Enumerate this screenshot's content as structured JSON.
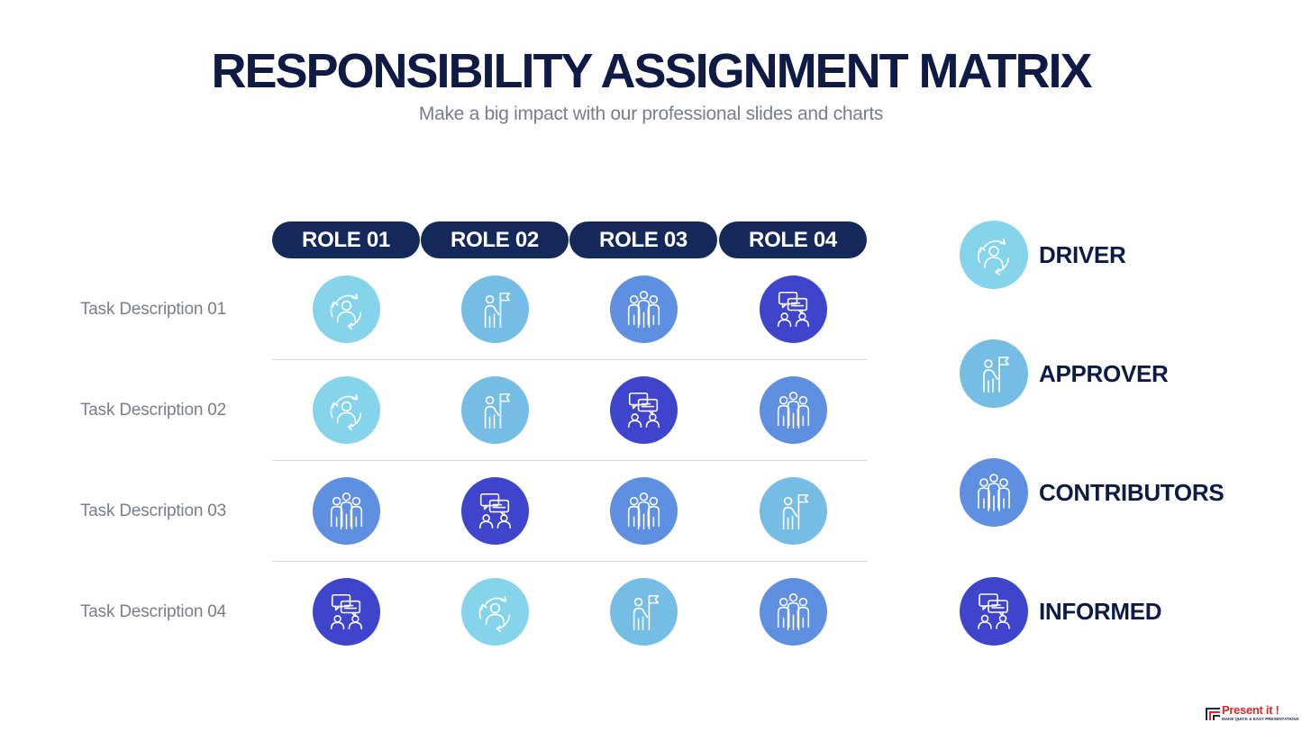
{
  "header": {
    "title": "RESPONSIBILITY ASSIGNMENT MATRIX",
    "subtitle": "Make a big impact with our professional slides and charts"
  },
  "roles": [
    "ROLE 01",
    "ROLE 02",
    "ROLE 03",
    "ROLE 04"
  ],
  "tasks": [
    "Task Description 01",
    "Task Description 02",
    "Task Description 03",
    "Task Description 04"
  ],
  "matrix": [
    [
      "driver",
      "approver",
      "contributors",
      "informed"
    ],
    [
      "driver",
      "approver",
      "informed",
      "contributors"
    ],
    [
      "contributors",
      "informed",
      "contributors",
      "approver"
    ],
    [
      "informed",
      "driver",
      "approver",
      "contributors"
    ]
  ],
  "legend": [
    {
      "key": "driver",
      "label": "DRIVER",
      "icon": "person-cycle-icon",
      "color": "#86d4ec"
    },
    {
      "key": "approver",
      "label": "APPROVER",
      "icon": "person-flag-icon",
      "color": "#76bde6"
    },
    {
      "key": "contributors",
      "label": "CONTRIBUTORS",
      "icon": "group-icon",
      "color": "#5f8fe0"
    },
    {
      "key": "informed",
      "label": "INFORMED",
      "icon": "chat-people-icon",
      "color": "#3f44cc"
    }
  ],
  "brand": {
    "name": "Present it !",
    "tagline": "MAKE QUICK & EASY PRESENTATIONS"
  }
}
